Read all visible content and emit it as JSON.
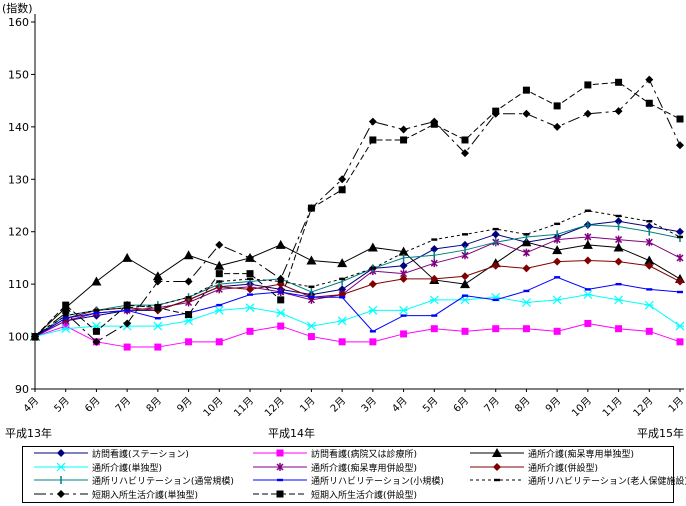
{
  "chart_data": {
    "type": "line",
    "ylabel": "(指数)",
    "ylim": [
      90,
      160
    ],
    "yticks": [
      90,
      100,
      110,
      120,
      130,
      140,
      150,
      160
    ],
    "grid": false,
    "categories": [
      "4月",
      "5月",
      "6月",
      "7月",
      "8月",
      "9月",
      "10月",
      "11月",
      "12月",
      "1月",
      "2月",
      "3月",
      "4月",
      "5月",
      "6月",
      "7月",
      "8月",
      "9月",
      "10月",
      "11月",
      "12月",
      "1月"
    ],
    "year_labels": [
      "平成13年",
      "平成14年",
      "平成15年"
    ],
    "legend_position": "bottom",
    "series": [
      {
        "name": "訪問看護(ステーション)",
        "color": "#000080",
        "marker": "diamond",
        "dash": "solid",
        "values": [
          100,
          103,
          104,
          105,
          105,
          107,
          109.5,
          110,
          109,
          108,
          109,
          113,
          113.5,
          116.7,
          117.5,
          119.5,
          118,
          119,
          121.3,
          122,
          121,
          120
        ]
      },
      {
        "name": "訪問看護(病院又は診療所)",
        "color": "#ff00ff",
        "marker": "square",
        "dash": "solid",
        "values": [
          100,
          102,
          99,
          98,
          98,
          99,
          99,
          101,
          102,
          100,
          99,
          99,
          100.5,
          101.5,
          101,
          101.5,
          101.5,
          101,
          102.5,
          101.5,
          101,
          99
        ]
      },
      {
        "name": "通所介護(痴呆専用単独型)",
        "color": "#000000",
        "marker": "triangle",
        "dash": "solid",
        "values": [
          100,
          105.5,
          110.5,
          115,
          111.5,
          115.5,
          113.5,
          115,
          117.5,
          114.5,
          114,
          117,
          116.2,
          110.8,
          110,
          114,
          118,
          116.5,
          117.5,
          117,
          114.5,
          111
        ]
      },
      {
        "name": "通所介護(単独型)",
        "color": "#00ffff",
        "marker": "x",
        "dash": "solid",
        "values": [
          100,
          101.5,
          102,
          102,
          102,
          103,
          105,
          105.5,
          104.5,
          102,
          103,
          105,
          105,
          107,
          107,
          107.5,
          106.5,
          107,
          108,
          107,
          106,
          102
        ]
      },
      {
        "name": "通所介護(痴呆専用併設型)",
        "color": "#800080",
        "marker": "star",
        "dash": "solid",
        "values": [
          100,
          103,
          104.5,
          105,
          105.5,
          106.5,
          109,
          109.5,
          108.5,
          107,
          108,
          112.5,
          112,
          114,
          115.5,
          118,
          116,
          118.5,
          119,
          118.5,
          118,
          115
        ]
      },
      {
        "name": "通所介護(併設型)",
        "color": "#800000",
        "marker": "diamond",
        "dash": "solid",
        "values": [
          100,
          103.5,
          105,
          105.5,
          105,
          107,
          109.5,
          109,
          110,
          107.5,
          108,
          110,
          111,
          111,
          111.5,
          113.5,
          113,
          114.3,
          114.5,
          114.3,
          113.5,
          110.5
        ]
      },
      {
        "name": "通所リハビリテーション(通常規模)",
        "color": "#008080",
        "marker": "plus",
        "dash": "solid",
        "values": [
          100,
          104,
          105,
          106,
          106,
          107.5,
          110,
          110.5,
          111,
          108.5,
          110.5,
          113,
          115,
          115.5,
          116.5,
          118,
          119,
          119.5,
          121.3,
          121,
          120,
          118.8
        ]
      },
      {
        "name": "通所リハビリテーション(小規模)",
        "color": "#0000ff",
        "marker": "dash",
        "dash": "solid",
        "values": [
          100,
          103.5,
          104.5,
          105,
          103.5,
          104.5,
          106,
          108,
          108.5,
          107.5,
          107.5,
          101,
          104,
          104,
          107.8,
          107,
          108.7,
          111.3,
          109,
          110,
          109,
          108.5
        ]
      },
      {
        "name": "通所リハビリテーション(老人保健施設)",
        "color": "#000000",
        "marker": "dash",
        "dash": "3,3",
        "values": [
          100,
          104,
          105,
          105.5,
          106,
          107.5,
          110.5,
          111,
          110.5,
          109.5,
          111,
          113,
          116,
          118.5,
          119.5,
          120.5,
          119.5,
          121.5,
          124,
          123,
          122,
          119
        ]
      },
      {
        "name": "短期入所生活介護(単独型)",
        "color": "#000000",
        "marker": "diamond",
        "dash": "12,4,3,4",
        "values": [
          100,
          104.5,
          99,
          102.5,
          110.5,
          110.5,
          117.5,
          115,
          111,
          124.5,
          130,
          141,
          139.5,
          141,
          135,
          142.5,
          142.5,
          140,
          142.5,
          143,
          149,
          136.5
        ]
      },
      {
        "name": "短期入所生活介護(併設型)",
        "color": "#000000",
        "marker": "square",
        "dash": "6,3",
        "values": [
          100,
          106,
          101,
          106,
          105.5,
          104.2,
          112,
          112,
          107,
          124.5,
          128,
          137.5,
          137.5,
          140.5,
          137.5,
          143,
          147,
          144,
          148,
          148.5,
          144.5,
          141.5
        ]
      }
    ]
  }
}
